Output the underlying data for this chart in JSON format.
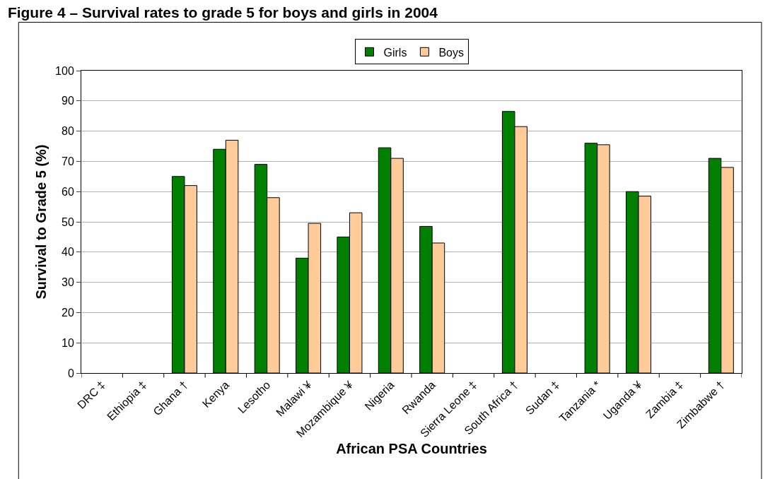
{
  "chart_data": {
    "type": "bar",
    "title": "Figure 4 – Survival rates to grade 5 for boys and girls in 2004",
    "xlabel": "African PSA Countries",
    "ylabel": "Survival to Grade 5 (%)",
    "categories": [
      "DRC ‡",
      "Ethiopia ‡",
      "Ghana †",
      "Kenya",
      "Lesotho",
      "Malawi ¥",
      "Mozambique ¥",
      "Nigeria",
      "Rwanda",
      "Sierra Leone ‡",
      "South Africa †",
      "Sudan ‡",
      "Tanzania *",
      "Uganda ¥",
      "Zambia ‡",
      "Zimbabwe †"
    ],
    "series": [
      {
        "name": "Girls",
        "color": "#008000",
        "values": [
          null,
          null,
          65,
          74,
          69,
          38,
          45,
          74.5,
          48.5,
          null,
          86.5,
          null,
          76,
          60,
          null,
          71
        ]
      },
      {
        "name": "Boys",
        "color": "#ffcc99",
        "values": [
          null,
          null,
          62,
          77,
          58,
          49.5,
          53,
          71,
          43,
          null,
          81.5,
          null,
          75.5,
          58.5,
          null,
          68
        ]
      }
    ],
    "ylim": [
      0,
      100
    ],
    "yticks": [
      0,
      10,
      20,
      30,
      40,
      50,
      60,
      70,
      80,
      90,
      100
    ],
    "grid": "y",
    "legend": "top"
  }
}
